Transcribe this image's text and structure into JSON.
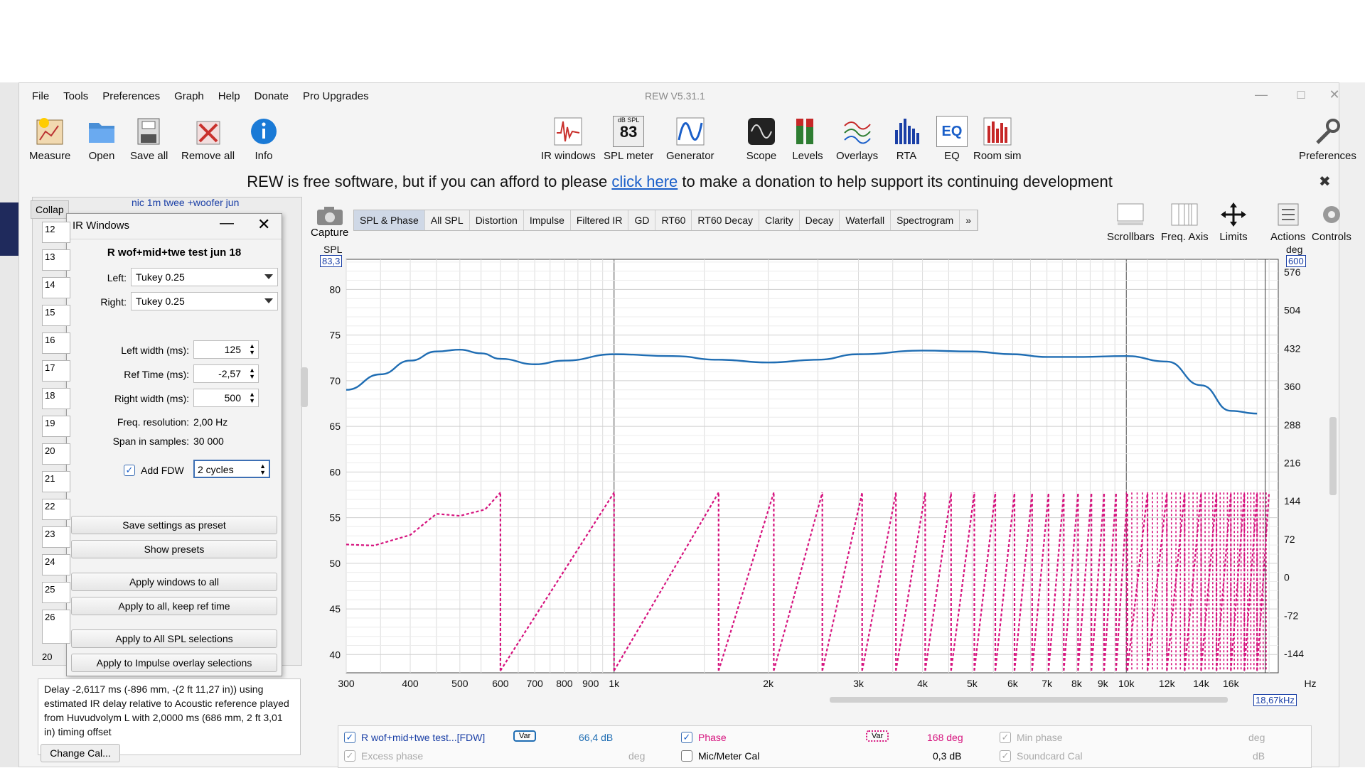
{
  "window": {
    "title": "REW V5.31.1"
  },
  "menu": [
    "File",
    "Tools",
    "Preferences",
    "Graph",
    "Help",
    "Donate",
    "Pro Upgrades"
  ],
  "toolbar_left": [
    {
      "label": "Measure",
      "icon": "measure-icon"
    },
    {
      "label": "Open",
      "icon": "folder-icon"
    },
    {
      "label": "Save all",
      "icon": "save-icon"
    },
    {
      "label": "Remove all",
      "icon": "remove-icon"
    },
    {
      "label": "Info",
      "icon": "info-icon"
    }
  ],
  "toolbar_center": [
    {
      "label": "IR windows",
      "icon": "ir-windows-icon"
    },
    {
      "label": "SPL meter",
      "icon": "spl-meter-icon",
      "badge_top": "dB SPL",
      "badge_value": "83"
    },
    {
      "label": "Generator",
      "icon": "generator-icon"
    },
    {
      "label": "Scope",
      "icon": "scope-icon"
    },
    {
      "label": "Levels",
      "icon": "levels-icon"
    },
    {
      "label": "Overlays",
      "icon": "overlays-icon"
    },
    {
      "label": "RTA",
      "icon": "rta-icon"
    },
    {
      "label": "EQ",
      "icon": "eq-icon"
    },
    {
      "label": "Room sim",
      "icon": "room-sim-icon"
    }
  ],
  "toolbar_right": {
    "label": "Preferences",
    "icon": "wrench-icon"
  },
  "donation": {
    "before": "REW is free software, but if you can afford to please ",
    "link": "click here",
    "after": " to make a donation to help support its continuing development"
  },
  "capture_label": "Capture",
  "graph_tabs": [
    "SPL & Phase",
    "All SPL",
    "Distortion",
    "Impulse",
    "Filtered IR",
    "GD",
    "RT60",
    "RT60 Decay",
    "Clarity",
    "Decay",
    "Waterfall",
    "Spectrogram",
    "»"
  ],
  "graph_tools": [
    {
      "label": "Scrollbars",
      "icon": "scrollbars-icon"
    },
    {
      "label": "Freq. Axis",
      "icon": "freq-axis-icon"
    },
    {
      "label": "Limits",
      "icon": "limits-icon"
    },
    {
      "label": "Actions",
      "icon": "actions-icon"
    },
    {
      "label": "Controls",
      "icon": "controls-icon"
    }
  ],
  "measurements": {
    "collapse_label": "Collap",
    "selected_name": "nic 1m twee +woofer jun",
    "rows": [
      "12",
      "13",
      "14",
      "15",
      "16",
      "17",
      "18",
      "19",
      "20",
      "21",
      "22",
      "23",
      "24",
      "25",
      "26"
    ],
    "bottom_number": "20"
  },
  "ir_dialog": {
    "title": "IR Windows",
    "measurement": "R wof+mid+twe test jun 18",
    "left_label": "Left:",
    "left_value": "Tukey 0.25",
    "right_label": "Right:",
    "right_value": "Tukey 0.25",
    "left_width_label": "Left width (ms):",
    "left_width": "125",
    "ref_time_label": "Ref Time (ms):",
    "ref_time": "-2,57",
    "right_width_label": "Right width (ms):",
    "right_width": "500",
    "freq_res_label": "Freq. resolution:",
    "freq_res": "2,00 Hz",
    "span_label": "Span in samples:",
    "span": "30 000",
    "fdw_label": "Add FDW",
    "fdw_value": "2 cycles",
    "buttons": [
      "Save settings as preset",
      "Show presets",
      "Apply windows to all",
      "Apply to all, keep ref time",
      "Apply to All SPL selections",
      "Apply to Impulse overlay selections"
    ]
  },
  "info_text": "Delay -2,6117 ms (-896 mm, -(2 ft 11,27 in)) using estimated IR delay relative to Acoustic reference played from Huvudvolym L with 2,0000 ms (686 mm, 2 ft 3,01 in) timing offset",
  "change_cal": "Change Cal...",
  "plot": {
    "spl_label": "SPL",
    "spl_cursor": "83,3",
    "deg_label": "deg",
    "deg_cursor": "600",
    "freq_cursor": "18,67kHz",
    "y_left": [
      "80",
      "75",
      "70",
      "65",
      "60",
      "55",
      "50",
      "45",
      "40"
    ],
    "y_right": [
      "576",
      "504",
      "432",
      "360",
      "288",
      "216",
      "144",
      "72",
      "0",
      "-72",
      "-144"
    ],
    "x_ticks": [
      "300",
      "400",
      "500",
      "600",
      "700",
      "800",
      "900",
      "1k",
      "2k",
      "3k",
      "4k",
      "5k",
      "6k",
      "7k",
      "8k",
      "9k",
      "10k",
      "12k",
      "14k",
      "16k"
    ],
    "x_unit": "Hz"
  },
  "chart_data": {
    "type": "line",
    "xlabel": "Hz",
    "ylabel": "SPL",
    "xlim": [
      300,
      20000
    ],
    "ylim": [
      38,
      83.3
    ],
    "y2lim": [
      -180,
      600
    ],
    "x_scale": "log",
    "series": [
      {
        "name": "R wof+mid+twe test...[FDW]",
        "color": "#1f6db3",
        "axis": "left",
        "x": [
          300,
          350,
          400,
          450,
          500,
          550,
          600,
          700,
          800,
          1000,
          1300,
          1600,
          2000,
          2500,
          3000,
          4000,
          5000,
          6000,
          7000,
          8000,
          10000,
          12000,
          14000,
          16000,
          18000
        ],
        "y": [
          69,
          70.7,
          72.2,
          73.2,
          73.4,
          73.0,
          72.4,
          71.8,
          72.2,
          72.9,
          72.7,
          72.3,
          72.0,
          72.3,
          72.9,
          73.3,
          73.2,
          72.9,
          72.6,
          72.6,
          72.7,
          72.1,
          69.5,
          66.7,
          66.4
        ]
      },
      {
        "name": "Phase",
        "color": "#d6137e",
        "axis": "right",
        "style": "dashed-wrapped"
      }
    ]
  },
  "legend": {
    "row1": [
      {
        "label": "R wof+mid+twe test...[FDW]",
        "checked": true,
        "style": "Var",
        "value": "66,4 dB"
      },
      {
        "label": "Phase",
        "checked": true,
        "style": "Var",
        "value": "168 deg"
      },
      {
        "label": "Min phase",
        "checked": true,
        "value": "deg"
      }
    ],
    "row2": [
      {
        "label": "Excess phase",
        "checked": true,
        "value": "deg"
      },
      {
        "label": "Mic/Meter Cal",
        "checked": false,
        "value": "0,3 dB"
      },
      {
        "label": "Soundcard Cal",
        "checked": true,
        "value": "dB"
      }
    ]
  },
  "colors": {
    "spl": "#1f6db3",
    "phase": "#d6137e",
    "accent": "#1a3fa6"
  }
}
